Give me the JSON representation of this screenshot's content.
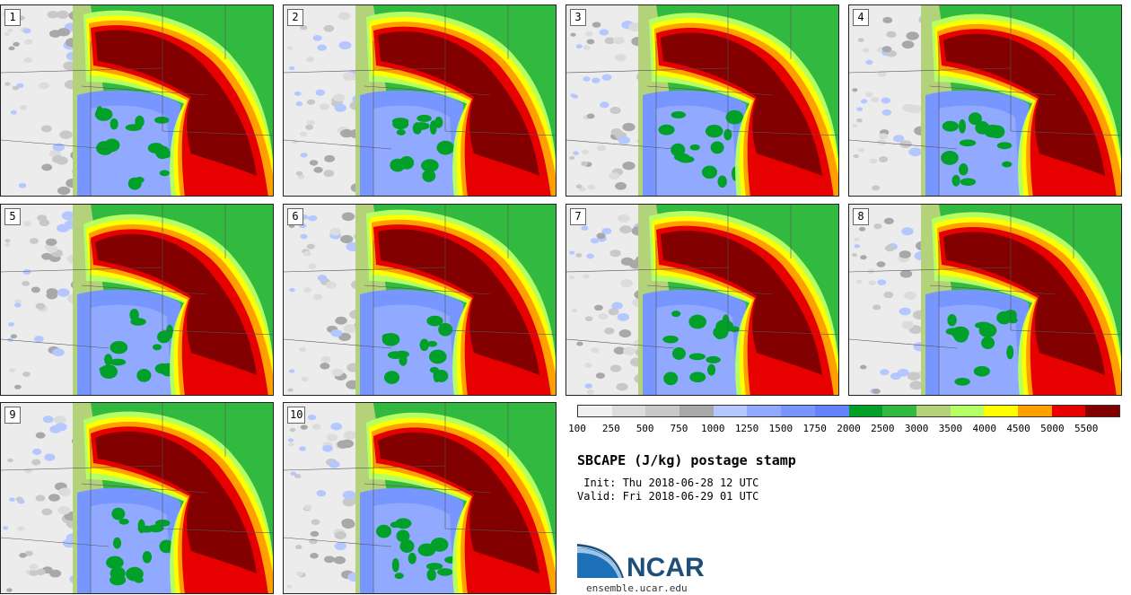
{
  "panels": [
    {
      "label": "1"
    },
    {
      "label": "2"
    },
    {
      "label": "3"
    },
    {
      "label": "4"
    },
    {
      "label": "5"
    },
    {
      "label": "6"
    },
    {
      "label": "7"
    },
    {
      "label": "8"
    },
    {
      "label": "9"
    },
    {
      "label": "10"
    }
  ],
  "legend": {
    "colors": [
      "#f0f0f0",
      "#dcdcdc",
      "#c8c8c8",
      "#a8a8a8",
      "#b4c8ff",
      "#91aaff",
      "#7896ff",
      "#6482ff",
      "#00a029",
      "#32b93f",
      "#b4d27a",
      "#b4ff64",
      "#ffff00",
      "#ffa000",
      "#e60000",
      "#820000"
    ],
    "labels": [
      "100",
      "250",
      "500",
      "750",
      "1000",
      "1250",
      "1500",
      "1750",
      "2000",
      "2500",
      "3000",
      "3500",
      "4000",
      "4500",
      "5000",
      "5500"
    ]
  },
  "title": "SBCAPE (J/kg) postage stamp",
  "init": " Init: Thu 2018-06-28 12 UTC",
  "valid": "Valid: Fri 2018-06-29 01 UTC",
  "logo": {
    "text": "NCAR",
    "url": "ensemble.ucar.edu"
  }
}
